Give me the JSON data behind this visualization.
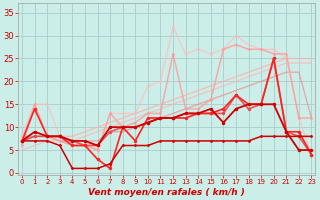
{
  "xlabel": "Vent moyen/en rafales ( km/h )",
  "bg_color": "#cceee8",
  "grid_color": "#aacccc",
  "x": [
    0,
    1,
    2,
    3,
    4,
    5,
    6,
    7,
    8,
    9,
    10,
    11,
    12,
    13,
    14,
    15,
    16,
    17,
    18,
    19,
    20,
    21,
    22,
    23
  ],
  "ylim": [
    -0.5,
    37
  ],
  "xlim": [
    -0.3,
    23.3
  ],
  "yticks": [
    0,
    5,
    10,
    15,
    20,
    25,
    30,
    35
  ],
  "lines": [
    {
      "name": "trend_upper_light",
      "y": [
        7,
        8,
        8,
        8,
        8,
        9,
        10,
        11,
        12,
        13,
        14,
        15,
        16,
        17,
        18,
        19,
        20,
        21,
        22,
        23,
        24,
        25,
        25,
        25
      ],
      "color": "#ffb0b0",
      "lw": 0.9,
      "marker": null,
      "ms": 0,
      "alpha": 0.85
    },
    {
      "name": "trend_upper_medium",
      "y": [
        5,
        6,
        7,
        7,
        7,
        8,
        9,
        10,
        11,
        12,
        13,
        14,
        15,
        16,
        17,
        18,
        19,
        20,
        21,
        22,
        23,
        24,
        24,
        24
      ],
      "color": "#ffb0b0",
      "lw": 0.9,
      "marker": null,
      "ms": 0,
      "alpha": 0.7
    },
    {
      "name": "light_pink_peak32",
      "y": [
        8,
        15,
        15,
        8,
        7,
        7,
        5,
        13,
        13,
        13,
        19,
        20,
        32,
        26,
        27,
        26,
        27,
        30,
        28,
        27,
        27,
        25,
        12,
        4
      ],
      "color": "#ffbbbb",
      "lw": 1.0,
      "marker": "o",
      "ms": 2.0,
      "alpha": 0.7
    },
    {
      "name": "medium_pink_peak27",
      "y": [
        6,
        15,
        8,
        7,
        6,
        6,
        5,
        13,
        10,
        11,
        13,
        13,
        26,
        14,
        14,
        16,
        27,
        28,
        27,
        27,
        26,
        26,
        12,
        12
      ],
      "color": "#ff9999",
      "lw": 1.1,
      "marker": "o",
      "ms": 2.0,
      "alpha": 0.8
    },
    {
      "name": "salmon_trend",
      "y": [
        8,
        8,
        8,
        7,
        7,
        7,
        7,
        9,
        9,
        10,
        11,
        12,
        13,
        14,
        15,
        16,
        17,
        18,
        19,
        20,
        21,
        22,
        22,
        12
      ],
      "color": "#ee8888",
      "lw": 1.0,
      "marker": null,
      "ms": 0,
      "alpha": 0.65
    },
    {
      "name": "red_upper_mid",
      "y": [
        7,
        8,
        8,
        8,
        7,
        6,
        6,
        9,
        10,
        10,
        11,
        12,
        12,
        13,
        13,
        13,
        13,
        17,
        14,
        15,
        25,
        9,
        8,
        4
      ],
      "color": "#ee4444",
      "lw": 1.2,
      "marker": "o",
      "ms": 2.5,
      "alpha": 0.9
    },
    {
      "name": "bright_red_volatile",
      "y": [
        7,
        14,
        8,
        8,
        6,
        6,
        3,
        1,
        10,
        7,
        12,
        12,
        12,
        12,
        13,
        13,
        14,
        17,
        15,
        15,
        25,
        9,
        9,
        4
      ],
      "color": "#ff2222",
      "lw": 1.2,
      "marker": "o",
      "ms": 2.5,
      "alpha": 1.0
    },
    {
      "name": "dark_red_main",
      "y": [
        7,
        9,
        8,
        8,
        7,
        7,
        6,
        10,
        10,
        10,
        11,
        12,
        12,
        13,
        13,
        14,
        11,
        14,
        15,
        15,
        15,
        9,
        5,
        5
      ],
      "color": "#cc0000",
      "lw": 1.3,
      "marker": "o",
      "ms": 2.5,
      "alpha": 1.0
    },
    {
      "name": "dark_red_floor",
      "y": [
        7,
        7,
        7,
        6,
        1,
        1,
        1,
        2,
        6,
        6,
        6,
        7,
        7,
        7,
        7,
        7,
        7,
        7,
        7,
        8,
        8,
        8,
        8,
        8
      ],
      "color": "#cc0000",
      "lw": 1.1,
      "marker": "o",
      "ms": 2.0,
      "alpha": 1.0
    }
  ]
}
